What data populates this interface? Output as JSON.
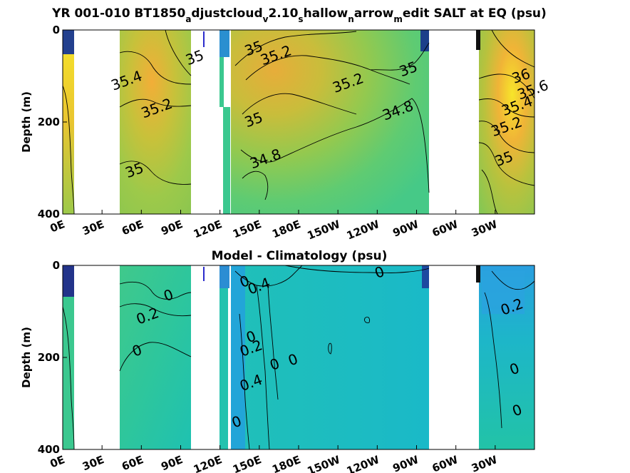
{
  "chart_data": [
    {
      "type": "heatmap",
      "title": "YR 001-010 BT1850_adjustcloud_v2.10_shallow_narrow_medit SALT at EQ (psu)",
      "title_parts": [
        "YR 001-010 BT1850",
        "a",
        "djustcloud",
        "v",
        "2.10",
        "s",
        "hallow",
        "n",
        "arrow",
        "m",
        "edit SALT at EQ (psu)"
      ],
      "ylabel": "Depth (m)",
      "y_ticks": [
        "0",
        "200",
        "400"
      ],
      "x_ticks": [
        "0E",
        "30E",
        "60E",
        "90E",
        "120E",
        "150E",
        "180E",
        "150W",
        "120W",
        "90W",
        "60W",
        "30W"
      ],
      "xlim": [
        0,
        360
      ],
      "ylim": [
        400,
        0
      ],
      "colors": [
        "#f7e52a",
        "#f2ae38",
        "#c8c13a",
        "#9dc94a",
        "#67cc6a",
        "#3fc98c",
        "#22c3a7",
        "#1bbfc0",
        "#2aa6de",
        "#233ca8"
      ],
      "contour_labels": [
        {
          "text": "35",
          "lon": 102,
          "depth": 70
        },
        {
          "text": "35.4",
          "lon": 50,
          "depth": 120
        },
        {
          "text": "35.2",
          "lon": 73,
          "depth": 180
        },
        {
          "text": "35",
          "lon": 56,
          "depth": 315
        },
        {
          "text": "35",
          "lon": 147,
          "depth": 50
        },
        {
          "text": "35.2",
          "lon": 164,
          "depth": 65
        },
        {
          "text": "35.2",
          "lon": 219,
          "depth": 125
        },
        {
          "text": "35",
          "lon": 265,
          "depth": 95
        },
        {
          "text": "34.8",
          "lon": 257,
          "depth": 185
        },
        {
          "text": "35",
          "lon": 147,
          "depth": 205
        },
        {
          "text": "34.8",
          "lon": 156,
          "depth": 290
        },
        {
          "text": "36",
          "lon": 351,
          "depth": 110
        },
        {
          "text": "35.6",
          "lon": 360,
          "depth": 140
        },
        {
          "text": "35.4",
          "lon": 348,
          "depth": 175
        },
        {
          "text": "35.2",
          "lon": 340,
          "depth": 220
        },
        {
          "text": "35",
          "lon": 338,
          "depth": 290
        }
      ]
    },
    {
      "type": "heatmap",
      "title": "Model - Climatology (psu)",
      "ylabel": "Depth (m)",
      "y_ticks": [
        "0",
        "200",
        "400"
      ],
      "x_ticks": [
        "0E",
        "30E",
        "60E",
        "90E",
        "120E",
        "150E",
        "180E",
        "150W",
        "120W",
        "90W",
        "60W",
        "30W"
      ],
      "xlim": [
        0,
        360
      ],
      "ylim": [
        400,
        0
      ],
      "contour_labels": [
        {
          "text": "0",
          "lon": 82,
          "depth": 75
        },
        {
          "text": "0.2",
          "lon": 66,
          "depth": 120
        },
        {
          "text": "0",
          "lon": 58,
          "depth": 195
        },
        {
          "text": "0",
          "lon": 140,
          "depth": 45
        },
        {
          "text": "0.4",
          "lon": 151,
          "depth": 55
        },
        {
          "text": "0",
          "lon": 243,
          "depth": 25
        },
        {
          "text": "0.2",
          "lon": 344,
          "depth": 100
        },
        {
          "text": "0",
          "lon": 145,
          "depth": 165
        },
        {
          "text": "0.2",
          "lon": 145,
          "depth": 190
        },
        {
          "text": "0",
          "lon": 163,
          "depth": 225
        },
        {
          "text": "0",
          "lon": 177,
          "depth": 215
        },
        {
          "text": "0.4",
          "lon": 145,
          "depth": 265
        },
        {
          "text": "0",
          "lon": 134,
          "depth": 350
        },
        {
          "text": "0",
          "lon": 346,
          "depth": 235
        },
        {
          "text": "0",
          "lon": 348,
          "depth": 325
        }
      ]
    }
  ]
}
